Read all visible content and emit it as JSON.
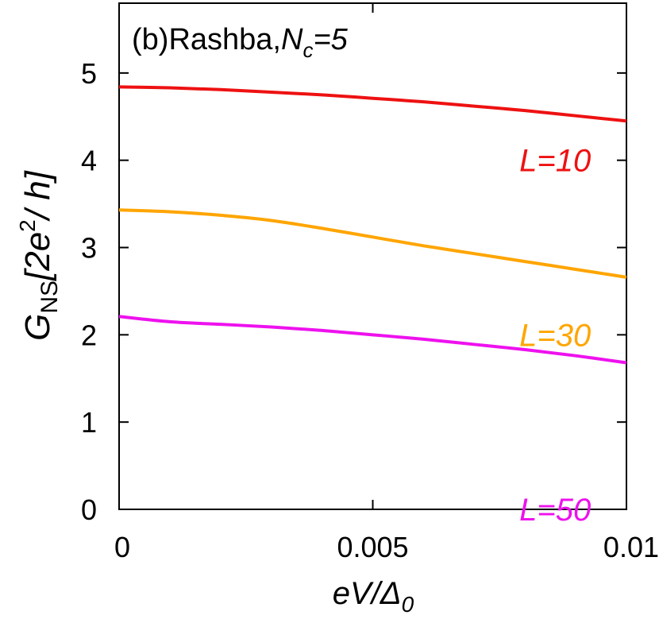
{
  "chart_data": {
    "type": "line",
    "panel": "(b)",
    "title_text": "Rashba,",
    "title_param": "N",
    "title_param_sub": "c",
    "title_value": "=5",
    "xlabel": "eV/Δ",
    "xlabel_sub": "0",
    "ylabel_main": "G",
    "ylabel_sub": "NS",
    "ylabel_bracket_open": "[2e",
    "ylabel_sup": "2",
    "ylabel_bracket_close": "/ h]",
    "xlim": [
      0,
      0.01
    ],
    "ylim": [
      0,
      5.8
    ],
    "x_ticks": [
      0,
      0.005,
      0.01
    ],
    "x_tick_labels": [
      "0",
      "0.005",
      "0.01"
    ],
    "y_ticks": [
      0,
      1,
      2,
      3,
      4,
      5
    ],
    "y_tick_labels": [
      "0",
      "1",
      "2",
      "3",
      "4",
      "5"
    ],
    "x": [
      0,
      0.001,
      0.002,
      0.003,
      0.004,
      0.005,
      0.006,
      0.007,
      0.008,
      0.009,
      0.01
    ],
    "series": [
      {
        "name": "L=10",
        "label": "L=10",
        "color": "#ee1111",
        "label_at": [
          0.0093,
          4.0
        ],
        "values": [
          4.84,
          4.83,
          4.81,
          4.78,
          4.75,
          4.71,
          4.67,
          4.62,
          4.57,
          4.51,
          4.45
        ]
      },
      {
        "name": "L=30",
        "label": "L=30",
        "color": "#ffa500",
        "label_at": [
          0.0093,
          2.0
        ],
        "values": [
          3.43,
          3.41,
          3.37,
          3.31,
          3.22,
          3.12,
          3.02,
          2.93,
          2.84,
          2.75,
          2.66
        ]
      },
      {
        "name": "L=50",
        "label": "L=50",
        "color": "#ee11ee",
        "label_at": [
          0.0093,
          0.0
        ],
        "values": [
          2.21,
          2.15,
          2.12,
          2.09,
          2.05,
          2.0,
          1.95,
          1.89,
          1.83,
          1.76,
          1.68
        ]
      }
    ]
  }
}
